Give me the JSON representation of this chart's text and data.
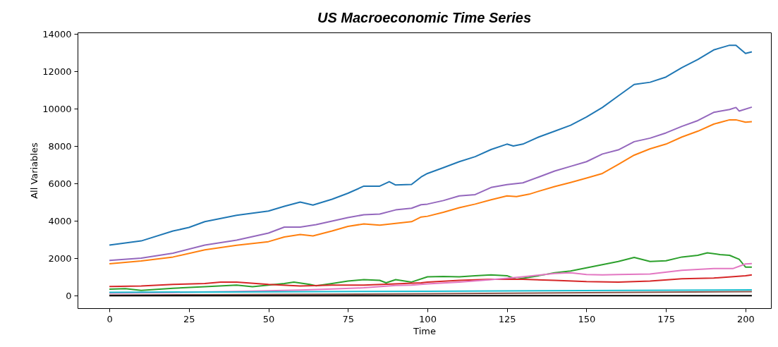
{
  "chart_data": {
    "type": "line",
    "title": "US Macroeconomic Time Series",
    "xlabel": "Time",
    "ylabel": "All Variables",
    "xlim": [
      -10,
      208
    ],
    "ylim": [
      -670,
      14085
    ],
    "xticks": [
      0,
      25,
      50,
      75,
      100,
      125,
      150,
      175,
      200
    ],
    "yticks": [
      0,
      2000,
      4000,
      6000,
      8000,
      10000,
      12000,
      14000
    ],
    "grid": false,
    "legend": false,
    "series": [
      {
        "color": "#1f77b4",
        "x": [
          0,
          10,
          20,
          25,
          30,
          40,
          50,
          55,
          60,
          64,
          70,
          75,
          80,
          85,
          88,
          90,
          95,
          98,
          100,
          105,
          110,
          115,
          120,
          125,
          127,
          130,
          135,
          140,
          145,
          150,
          155,
          160,
          165,
          170,
          175,
          180,
          185,
          190,
          195,
          197,
          200,
          202
        ],
        "values": [
          2710,
          2930,
          3460,
          3650,
          3960,
          4300,
          4530,
          4780,
          5010,
          4850,
          5160,
          5480,
          5860,
          5860,
          6100,
          5920,
          5950,
          6350,
          6540,
          6850,
          7170,
          7440,
          7820,
          8110,
          8010,
          8110,
          8490,
          8800,
          9120,
          9560,
          10070,
          10690,
          11300,
          11420,
          11700,
          12200,
          12640,
          13150,
          13400,
          13400,
          12960,
          13050
        ]
      },
      {
        "color": "#ff7f0e",
        "x": [
          0,
          10,
          20,
          30,
          40,
          50,
          55,
          60,
          64,
          70,
          75,
          80,
          85,
          90,
          95,
          98,
          100,
          105,
          110,
          115,
          120,
          125,
          128,
          132,
          135,
          140,
          145,
          150,
          155,
          160,
          165,
          170,
          175,
          180,
          185,
          190,
          195,
          197,
          200,
          202
        ],
        "values": [
          1710,
          1860,
          2070,
          2450,
          2700,
          2890,
          3140,
          3270,
          3200,
          3460,
          3710,
          3840,
          3770,
          3870,
          3960,
          4210,
          4250,
          4460,
          4710,
          4900,
          5130,
          5340,
          5300,
          5430,
          5590,
          5840,
          6060,
          6290,
          6540,
          7020,
          7520,
          7860,
          8110,
          8490,
          8800,
          9180,
          9410,
          9410,
          9280,
          9310
        ]
      },
      {
        "color": "#2ca02c",
        "x": [
          0,
          5,
          10,
          20,
          30,
          40,
          45,
          50,
          55,
          58,
          63,
          65,
          70,
          75,
          80,
          85,
          87,
          90,
          95,
          100,
          105,
          110,
          115,
          120,
          125,
          128,
          135,
          140,
          145,
          150,
          155,
          160,
          165,
          170,
          175,
          180,
          185,
          188,
          192,
          195,
          198,
          200,
          202
        ],
        "values": [
          350,
          380,
          280,
          400,
          480,
          570,
          480,
          570,
          650,
          730,
          600,
          530,
          650,
          780,
          860,
          820,
          690,
          860,
          730,
          1010,
          1030,
          1010,
          1070,
          1110,
          1070,
          880,
          1070,
          1230,
          1320,
          1490,
          1660,
          1830,
          2050,
          1830,
          1870,
          2070,
          2160,
          2290,
          2200,
          2160,
          1950,
          1530,
          1530
        ]
      },
      {
        "color": "#d62728",
        "x": [
          0,
          10,
          20,
          30,
          35,
          40,
          50,
          60,
          70,
          80,
          90,
          98,
          100,
          110,
          120,
          130,
          140,
          150,
          160,
          170,
          180,
          190,
          200,
          202
        ],
        "values": [
          490,
          520,
          600,
          650,
          730,
          730,
          600,
          520,
          570,
          570,
          630,
          690,
          730,
          820,
          880,
          880,
          820,
          750,
          730,
          780,
          910,
          940,
          1070,
          1110
        ]
      },
      {
        "color": "#9467bd",
        "x": [
          0,
          10,
          20,
          30,
          40,
          50,
          55,
          60,
          65,
          70,
          75,
          80,
          85,
          90,
          95,
          98,
          100,
          105,
          110,
          115,
          120,
          125,
          130,
          135,
          140,
          145,
          150,
          155,
          160,
          165,
          170,
          175,
          180,
          185,
          190,
          195,
          197,
          198,
          202
        ],
        "values": [
          1890,
          2010,
          2270,
          2710,
          2970,
          3350,
          3670,
          3670,
          3800,
          3990,
          4180,
          4330,
          4370,
          4590,
          4680,
          4870,
          4900,
          5090,
          5340,
          5410,
          5790,
          5940,
          6040,
          6350,
          6670,
          6920,
          7170,
          7580,
          7800,
          8240,
          8430,
          8710,
          9060,
          9370,
          9810,
          9960,
          10070,
          9880,
          10090
        ]
      },
      {
        "color": "#8c564b",
        "x": [
          0,
          100,
          202
        ],
        "values": [
          30,
          100,
          220
        ]
      },
      {
        "color": "#e377c2",
        "x": [
          0,
          20,
          40,
          60,
          70,
          80,
          90,
          95,
          100,
          110,
          120,
          130,
          140,
          145,
          150,
          155,
          160,
          170,
          180,
          190,
          196,
          200,
          202
        ],
        "values": [
          140,
          170,
          230,
          300,
          360,
          420,
          550,
          570,
          630,
          730,
          860,
          1010,
          1190,
          1230,
          1130,
          1110,
          1130,
          1160,
          1360,
          1450,
          1450,
          1700,
          1720
        ]
      },
      {
        "color": "#17becf",
        "x": [
          0,
          100,
          202
        ],
        "values": [
          180,
          240,
          310
        ]
      },
      {
        "color": "#000000",
        "x": [
          0,
          202
        ],
        "values": [
          0,
          0
        ]
      }
    ]
  }
}
